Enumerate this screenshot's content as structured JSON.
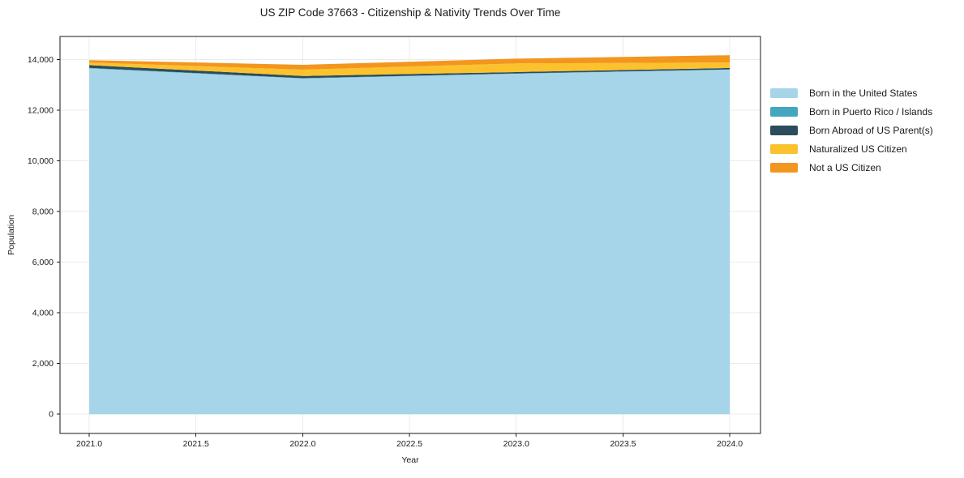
{
  "title": "US ZIP Code 37663 - Citizenship & Nativity Trends Over Time",
  "chart_data": {
    "type": "area",
    "stacked": true,
    "title": "US ZIP Code 37663 - Citizenship & Nativity Trends Over Time",
    "xlabel": "Year",
    "ylabel": "Population",
    "x": [
      2021,
      2022,
      2023,
      2024
    ],
    "series": [
      {
        "name": "Born in the United States",
        "color": "#A6D4E8",
        "values": [
          13650,
          13250,
          13440,
          13600
        ]
      },
      {
        "name": "Born in Puerto Rico / Islands",
        "color": "#45A6C0",
        "values": [
          20,
          15,
          10,
          10
        ]
      },
      {
        "name": "Born Abroad of US Parent(s)",
        "color": "#2B4C5C",
        "values": [
          110,
          85,
          55,
          55
        ]
      },
      {
        "name": "Naturalized US Citizen",
        "color": "#FCC22E",
        "values": [
          100,
          250,
          340,
          220
        ]
      },
      {
        "name": "Not a US Citizen",
        "color": "#F3961E",
        "values": [
          95,
          190,
          190,
          285
        ]
      }
    ],
    "xlim": [
      2020.863,
      2024.144
    ],
    "ylim": [
      -760,
      14910
    ],
    "xticks": [
      2021.0,
      2021.5,
      2022.0,
      2022.5,
      2023.0,
      2023.5,
      2024.0
    ],
    "xtick_labels": [
      "2021.0",
      "2021.5",
      "2022.0",
      "2022.5",
      "2023.0",
      "2023.5",
      "2024.0"
    ],
    "yticks": [
      0,
      2000,
      4000,
      6000,
      8000,
      10000,
      12000,
      14000
    ],
    "ytick_labels": [
      "0",
      "2,000",
      "4,000",
      "6,000",
      "8,000",
      "10,000",
      "12,000",
      "14,000"
    ],
    "grid": true,
    "legend_position": "center-right outside"
  },
  "colors": {
    "background": "#ffffff",
    "grid": "#ebebeb",
    "spine": "#1a1a1a",
    "text": "#1a1a1a"
  }
}
